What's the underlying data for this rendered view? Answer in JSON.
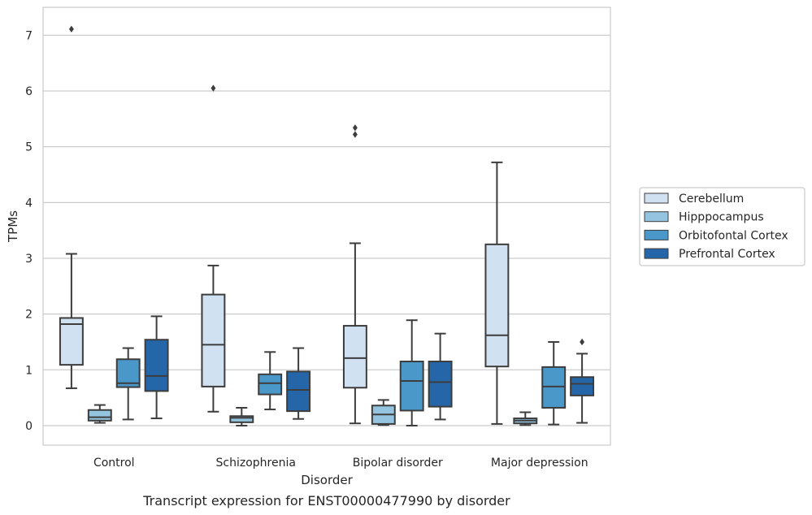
{
  "chart_data": {
    "type": "box",
    "title": "",
    "caption": "Transcript expression for ENST00000477990 by disorder",
    "xlabel": "Disorder",
    "ylabel": "TPMs",
    "ylim": [
      -0.35,
      7.5
    ],
    "yticks": [
      0,
      1,
      2,
      3,
      4,
      5,
      6,
      7
    ],
    "grid": "horizontal",
    "legend_position": "right",
    "categories": [
      "Control",
      "Schizophrenia",
      "Bipolar disorder",
      "Major depression"
    ],
    "series": [
      {
        "name": "Cerebellum",
        "color": "#d0e1f2",
        "boxes": [
          {
            "whislo": 0.67,
            "q1": 1.09,
            "med": 1.82,
            "q3": 1.93,
            "whishi": 3.08,
            "fliers": [
              7.11
            ]
          },
          {
            "whislo": 0.25,
            "q1": 0.7,
            "med": 1.45,
            "q3": 2.35,
            "whishi": 2.87,
            "fliers": [
              6.05
            ]
          },
          {
            "whislo": 0.04,
            "q1": 0.68,
            "med": 1.21,
            "q3": 1.79,
            "whishi": 3.27,
            "fliers": [
              5.22,
              5.34
            ]
          },
          {
            "whislo": 0.03,
            "q1": 1.06,
            "med": 1.62,
            "q3": 3.25,
            "whishi": 4.72,
            "fliers": []
          }
        ]
      },
      {
        "name": "Hipppocampus",
        "color": "#94c4df",
        "boxes": [
          {
            "whislo": 0.05,
            "q1": 0.09,
            "med": 0.15,
            "q3": 0.28,
            "whishi": 0.37,
            "fliers": []
          },
          {
            "whislo": 0.0,
            "q1": 0.06,
            "med": 0.14,
            "q3": 0.17,
            "whishi": 0.32,
            "fliers": []
          },
          {
            "whislo": 0.01,
            "q1": 0.03,
            "med": 0.2,
            "q3": 0.36,
            "whishi": 0.46,
            "fliers": []
          },
          {
            "whislo": 0.01,
            "q1": 0.04,
            "med": 0.09,
            "q3": 0.13,
            "whishi": 0.24,
            "fliers": []
          }
        ]
      },
      {
        "name": "Orbitofontal Cortex",
        "color": "#4a98c9",
        "boxes": [
          {
            "whislo": 0.11,
            "q1": 0.69,
            "med": 0.76,
            "q3": 1.19,
            "whishi": 1.39,
            "fliers": []
          },
          {
            "whislo": 0.29,
            "q1": 0.56,
            "med": 0.76,
            "q3": 0.92,
            "whishi": 1.32,
            "fliers": []
          },
          {
            "whislo": 0.0,
            "q1": 0.27,
            "med": 0.8,
            "q3": 1.15,
            "whishi": 1.89,
            "fliers": []
          },
          {
            "whislo": 0.02,
            "q1": 0.32,
            "med": 0.7,
            "q3": 1.05,
            "whishi": 1.5,
            "fliers": []
          }
        ]
      },
      {
        "name": "Prefrontal Cortex",
        "color": "#2566a9",
        "boxes": [
          {
            "whislo": 0.13,
            "q1": 0.62,
            "med": 0.89,
            "q3": 1.54,
            "whishi": 1.96,
            "fliers": []
          },
          {
            "whislo": 0.12,
            "q1": 0.26,
            "med": 0.64,
            "q3": 0.97,
            "whishi": 1.39,
            "fliers": []
          },
          {
            "whislo": 0.11,
            "q1": 0.34,
            "med": 0.78,
            "q3": 1.15,
            "whishi": 1.65,
            "fliers": []
          },
          {
            "whislo": 0.05,
            "q1": 0.54,
            "med": 0.75,
            "q3": 0.87,
            "whishi": 1.29,
            "fliers": [
              1.5
            ]
          }
        ]
      }
    ]
  }
}
